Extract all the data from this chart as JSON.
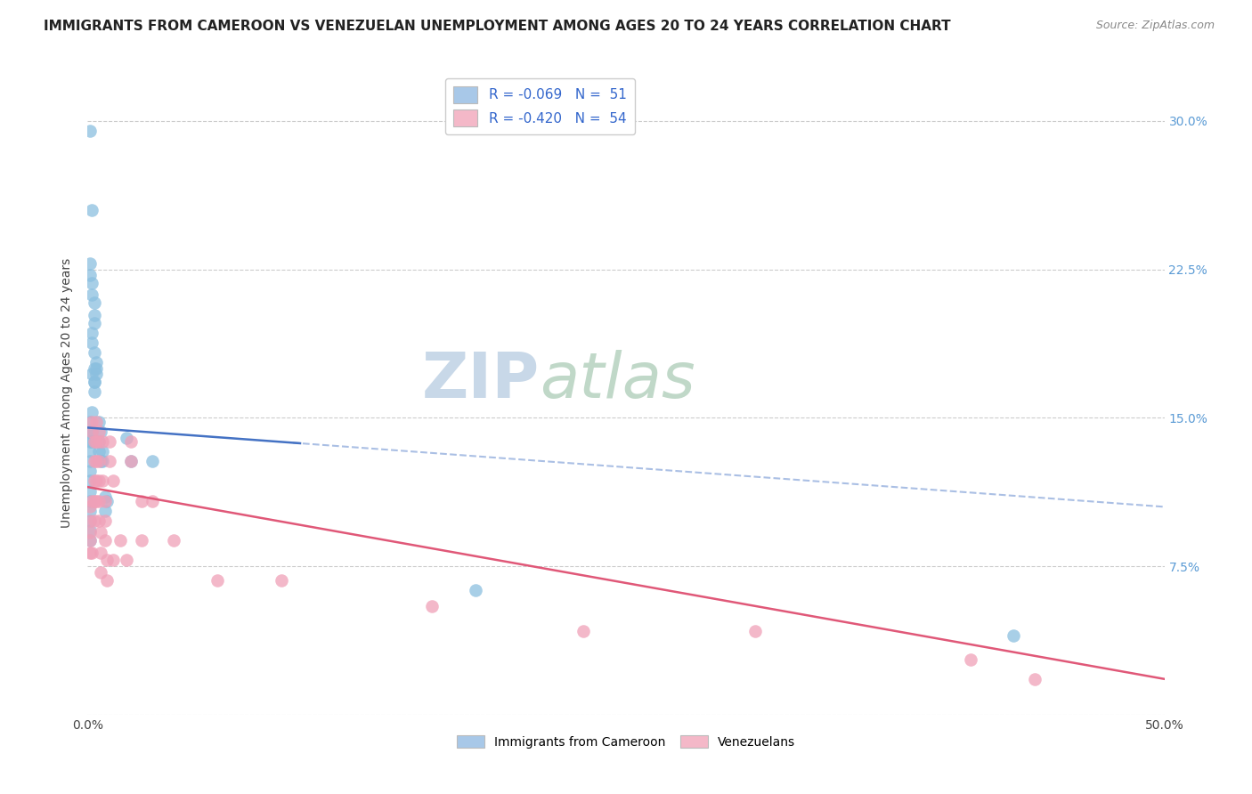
{
  "title": "IMMIGRANTS FROM CAMEROON VS VENEZUELAN UNEMPLOYMENT AMONG AGES 20 TO 24 YEARS CORRELATION CHART",
  "source": "Source: ZipAtlas.com",
  "ylabel": "Unemployment Among Ages 20 to 24 years",
  "xlim": [
    0.0,
    0.5
  ],
  "ylim": [
    0.0,
    0.325
  ],
  "xticks": [
    0.0,
    0.1,
    0.2,
    0.3,
    0.4,
    0.5
  ],
  "xtick_labels": [
    "0.0%",
    "",
    "",
    "",
    "",
    "50.0%"
  ],
  "yticks": [
    0.0,
    0.075,
    0.15,
    0.225,
    0.3
  ],
  "ytick_labels_left": [
    "",
    "",
    "",
    "",
    ""
  ],
  "ytick_labels_right": [
    "",
    "7.5%",
    "15.0%",
    "22.5%",
    "30.0%"
  ],
  "legend_color1": "#a8c8e8",
  "legend_color2": "#f4b8c8",
  "color_blue": "#8bbfdf",
  "color_pink": "#f0a0b8",
  "line_blue": "#4472c4",
  "line_pink": "#e05878",
  "watermark_zip": "ZIP",
  "watermark_atlas": "atlas",
  "background_color": "#ffffff",
  "grid_color": "#cccccc",
  "title_fontsize": 11,
  "axis_label_fontsize": 10,
  "tick_fontsize": 10,
  "source_fontsize": 9,
  "watermark_fontsize": 52,
  "watermark_color_zip": "#c8d8e8",
  "watermark_color_atlas": "#c0d8c8",
  "title_color": "#222222",
  "right_tick_color": "#5b9bd5",
  "bottom_legend": [
    "Immigrants from Cameroon",
    "Venezuelans"
  ],
  "blue_line_start_y": 0.145,
  "blue_line_end_y": 0.105,
  "blue_line_solid_end_x": 0.1,
  "pink_line_start_y": 0.115,
  "pink_line_end_y": 0.018,
  "blue_points_x": [
    0.001,
    0.002,
    0.001,
    0.001,
    0.002,
    0.002,
    0.003,
    0.003,
    0.003,
    0.002,
    0.002,
    0.003,
    0.004,
    0.003,
    0.002,
    0.003,
    0.004,
    0.004,
    0.003,
    0.003,
    0.002,
    0.001,
    0.001,
    0.001,
    0.001,
    0.002,
    0.002,
    0.001,
    0.001,
    0.001,
    0.001,
    0.001,
    0.001,
    0.001,
    0.001,
    0.001,
    0.005,
    0.006,
    0.005,
    0.005,
    0.006,
    0.007,
    0.007,
    0.008,
    0.009,
    0.008,
    0.018,
    0.02,
    0.03,
    0.18,
    0.43
  ],
  "blue_points_y": [
    0.295,
    0.255,
    0.228,
    0.222,
    0.218,
    0.212,
    0.208,
    0.202,
    0.198,
    0.193,
    0.188,
    0.183,
    0.178,
    0.175,
    0.172,
    0.168,
    0.175,
    0.172,
    0.168,
    0.163,
    0.153,
    0.148,
    0.143,
    0.138,
    0.133,
    0.143,
    0.138,
    0.128,
    0.123,
    0.118,
    0.113,
    0.108,
    0.103,
    0.098,
    0.093,
    0.088,
    0.148,
    0.143,
    0.138,
    0.133,
    0.128,
    0.133,
    0.128,
    0.11,
    0.108,
    0.103,
    0.14,
    0.128,
    0.128,
    0.063,
    0.04
  ],
  "pink_points_x": [
    0.001,
    0.001,
    0.001,
    0.001,
    0.001,
    0.002,
    0.002,
    0.002,
    0.002,
    0.003,
    0.003,
    0.003,
    0.003,
    0.003,
    0.004,
    0.004,
    0.004,
    0.004,
    0.004,
    0.005,
    0.005,
    0.005,
    0.005,
    0.005,
    0.005,
    0.006,
    0.006,
    0.006,
    0.007,
    0.007,
    0.008,
    0.008,
    0.008,
    0.009,
    0.009,
    0.01,
    0.01,
    0.012,
    0.012,
    0.015,
    0.018,
    0.02,
    0.02,
    0.025,
    0.025,
    0.03,
    0.04,
    0.06,
    0.09,
    0.16,
    0.23,
    0.31,
    0.41,
    0.44
  ],
  "pink_points_y": [
    0.105,
    0.098,
    0.092,
    0.088,
    0.082,
    0.148,
    0.143,
    0.108,
    0.082,
    0.138,
    0.128,
    0.118,
    0.108,
    0.098,
    0.148,
    0.138,
    0.128,
    0.118,
    0.108,
    0.143,
    0.138,
    0.128,
    0.118,
    0.108,
    0.098,
    0.092,
    0.082,
    0.072,
    0.138,
    0.118,
    0.108,
    0.098,
    0.088,
    0.078,
    0.068,
    0.138,
    0.128,
    0.118,
    0.078,
    0.088,
    0.078,
    0.138,
    0.128,
    0.108,
    0.088,
    0.108,
    0.088,
    0.068,
    0.068,
    0.055,
    0.042,
    0.042,
    0.028,
    0.018
  ]
}
